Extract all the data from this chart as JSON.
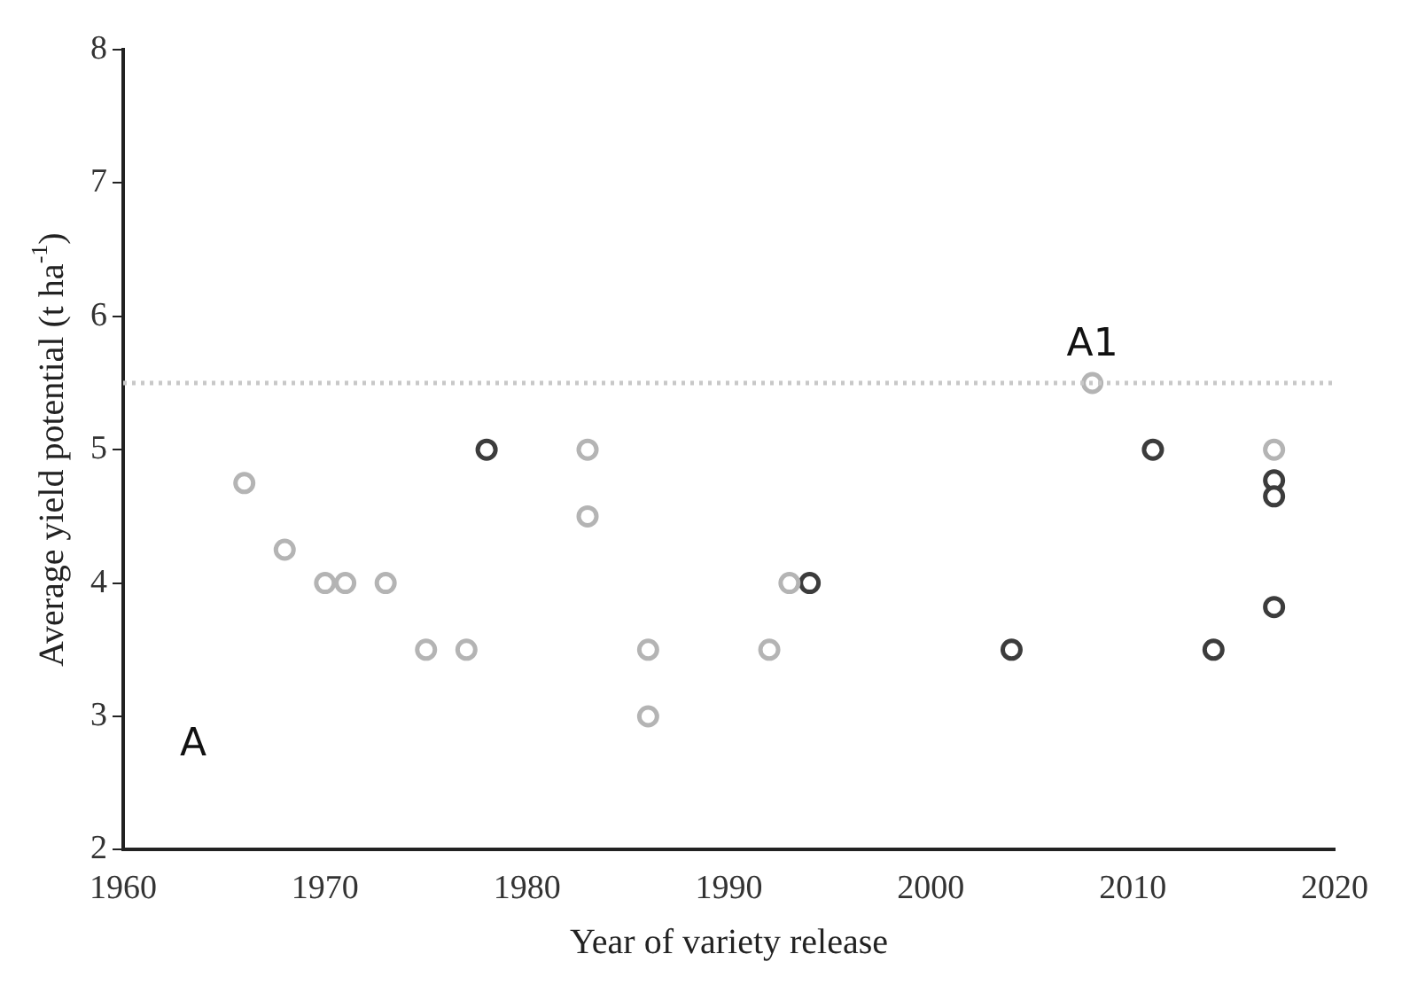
{
  "chart_data": {
    "type": "scatter",
    "xlabel": "Year of variety release",
    "ylabel": "Average yield potential (t ha$^{-1}$)",
    "series": [
      {
        "color": "#b4b4b4",
        "x": [
          1966,
          1968,
          1970,
          1971,
          1973,
          1975,
          1977,
          1983,
          1983,
          1986,
          1986,
          1992,
          1993,
          2008,
          2017
        ],
        "values": [
          4.75,
          4.25,
          4,
          4,
          4,
          3.5,
          3.5,
          5,
          4.5,
          3.5,
          3,
          3.5,
          4,
          5.5,
          5
        ]
      },
      {
        "color": "#3c3c3c",
        "x": [
          1978,
          1994,
          2004,
          2011,
          2014,
          2017,
          2017,
          2017
        ],
        "values": [
          5,
          4,
          3.5,
          5,
          3.5,
          4.77,
          4.65,
          3.82
        ]
      }
    ],
    "xlim": [
      1960,
      2020
    ],
    "xticks": [
      1960,
      1970,
      1980,
      1990,
      2000,
      2010,
      2020
    ],
    "ylim": [
      2,
      8
    ],
    "yticks": [
      2,
      3,
      4,
      5,
      6,
      7,
      8
    ],
    "ref_lines": [
      {
        "axis": "y",
        "value": 5.5,
        "color": "#c8c8c8",
        "line_style": "dotted"
      }
    ],
    "annotations": [
      "A",
      {
        "text": "A1",
        "x": 2008,
        "y": 5.5
      }
    ],
    "grid": false,
    "legend": false,
    "marker": "circle"
  }
}
